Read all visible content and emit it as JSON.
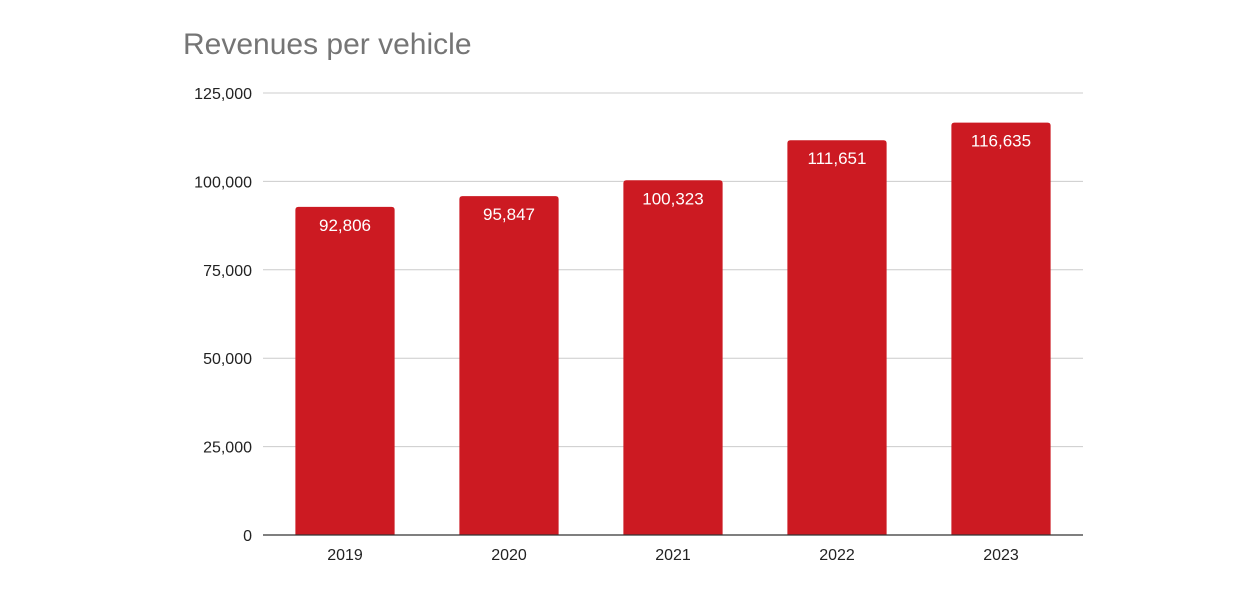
{
  "chart_data": {
    "type": "bar",
    "title": "Revenues per vehicle",
    "xlabel": "",
    "ylabel": "",
    "categories": [
      "2019",
      "2020",
      "2021",
      "2022",
      "2023"
    ],
    "values": [
      92806,
      95847,
      100323,
      111651,
      116635
    ],
    "data_labels": [
      "92,806",
      "95,847",
      "100,323",
      "111,651",
      "116,635"
    ],
    "ylim": [
      0,
      125000
    ],
    "y_ticks": [
      0,
      25000,
      50000,
      75000,
      100000,
      125000
    ],
    "y_tick_labels": [
      "0",
      "25,000",
      "50,000",
      "75,000",
      "100,000",
      "125,000"
    ],
    "grid": true,
    "legend": "none",
    "bar_color": "#cc1a22",
    "grid_color": "#cccccc",
    "axis_color": "#333333"
  }
}
